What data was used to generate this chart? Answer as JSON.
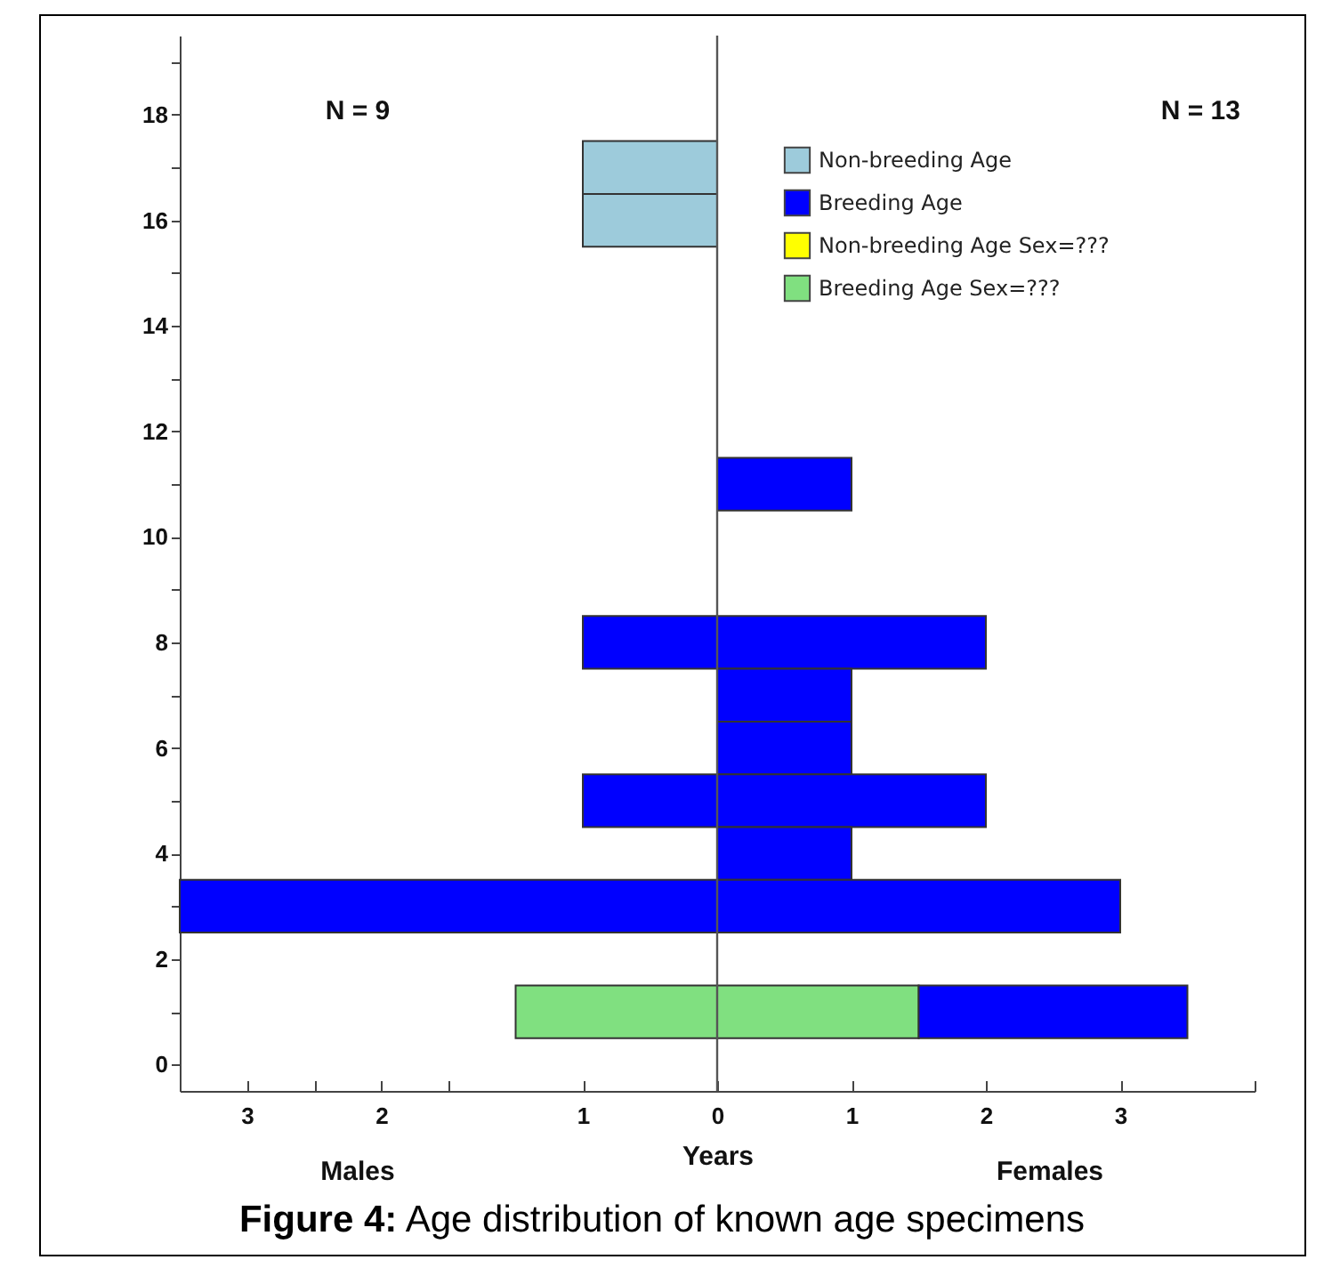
{
  "chart_data": {
    "type": "bar",
    "orientation": "horizontal",
    "stacked": true,
    "title": "Figure 4: Age distribution of known age specimens",
    "xlabel": "Years",
    "annotations": [
      "N = 9",
      "N = 13",
      "Males",
      "Females"
    ],
    "x": [
      17,
      16,
      11,
      8,
      7,
      6,
      5,
      4,
      3,
      1
    ],
    "series": [
      {
        "name": "Non-breeding Age",
        "color": "#9dcbdb",
        "values": [
          -1,
          -1,
          null,
          null,
          null,
          null,
          null,
          null,
          null,
          null
        ]
      },
      {
        "name": "Breeding Age",
        "color": "#0000ff",
        "values": [
          null,
          null,
          null,
          -1,
          null,
          null,
          -1,
          null,
          -4,
          null
        ]
      },
      {
        "name": "Non-breeding Age Sex=???",
        "color": "#ffff00",
        "values": [
          null,
          null,
          null,
          null,
          null,
          null,
          null,
          null,
          null,
          null
        ]
      },
      {
        "name": "Breeding Age Sex=???",
        "color": "#80e080",
        "values": [
          null,
          null,
          null,
          null,
          null,
          null,
          null,
          null,
          null,
          -1.5
        ]
      },
      {
        "color": "#80e080",
        "values": [
          null,
          null,
          null,
          null,
          null,
          null,
          null,
          null,
          null,
          1.5
        ]
      },
      {
        "color": "#0000ff",
        "values": [
          null,
          null,
          1,
          2,
          1,
          1,
          2,
          1,
          3,
          2
        ]
      }
    ],
    "xlim": [
      -4,
      4
    ],
    "xticks": [
      {
        "value": -4,
        "label": null
      },
      {
        "value": -3.5,
        "label": "3"
      },
      {
        "value": -3,
        "label": null
      },
      {
        "value": -2.5,
        "label": "2"
      },
      {
        "value": -2,
        "label": null
      },
      {
        "value": -1,
        "label": "1"
      },
      0,
      {
        "value": 1,
        "label": "1"
      },
      {
        "value": 2,
        "label": "2"
      },
      {
        "value": 3,
        "label": "3"
      },
      {
        "value": 4,
        "label": null
      }
    ],
    "ylim": [
      -0.5,
      19.5
    ],
    "yticks": [
      0,
      {
        "value": 1,
        "label": null
      },
      2,
      {
        "value": 3,
        "label": null
      },
      4,
      {
        "value": 5,
        "label": null
      },
      6,
      {
        "value": 7,
        "label": null
      },
      8,
      {
        "value": 9,
        "label": null
      },
      10,
      {
        "value": 11,
        "label": null
      },
      12,
      {
        "value": 13,
        "label": null
      },
      14,
      {
        "value": 15,
        "label": null
      },
      16,
      {
        "value": 17,
        "label": null
      },
      18,
      {
        "value": 19,
        "label": null
      }
    ],
    "ref_lines": [
      {
        "axis": "x",
        "value": 0,
        "color": "#555555"
      }
    ],
    "legend": "top right",
    "grid": false
  }
}
